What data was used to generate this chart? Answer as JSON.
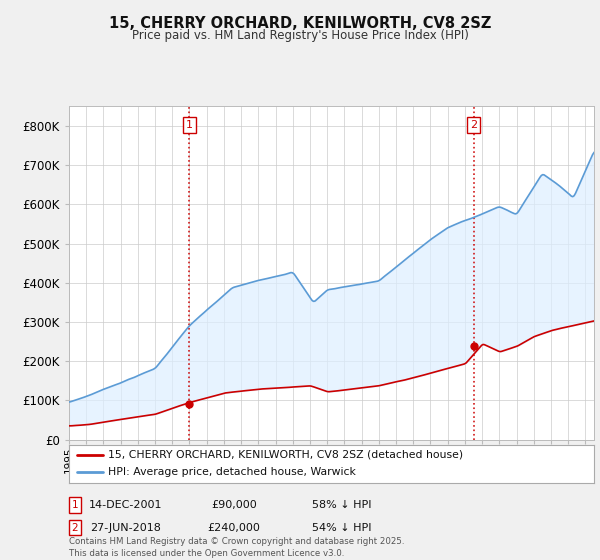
{
  "title": "15, CHERRY ORCHARD, KENILWORTH, CV8 2SZ",
  "subtitle": "Price paid vs. HM Land Registry's House Price Index (HPI)",
  "ylim": [
    0,
    850000
  ],
  "yticks": [
    0,
    100000,
    200000,
    300000,
    400000,
    500000,
    600000,
    700000,
    800000
  ],
  "ytick_labels": [
    "£0",
    "£100K",
    "£200K",
    "£300K",
    "£400K",
    "£500K",
    "£600K",
    "£700K",
    "£800K"
  ],
  "hpi_color": "#5b9bd5",
  "hpi_fill_color": "#ddeeff",
  "price_color": "#cc0000",
  "marker1_x": 2002.0,
  "marker1_y": 90000,
  "marker2_x": 2018.5,
  "marker2_y": 240000,
  "legend_line1": "15, CHERRY ORCHARD, KENILWORTH, CV8 2SZ (detached house)",
  "legend_line2": "HPI: Average price, detached house, Warwick",
  "annotation1_date": "14-DEC-2001",
  "annotation1_price": "£90,000",
  "annotation1_hpi": "58% ↓ HPI",
  "annotation2_date": "27-JUN-2018",
  "annotation2_price": "£240,000",
  "annotation2_hpi": "54% ↓ HPI",
  "footnote": "Contains HM Land Registry data © Crown copyright and database right 2025.\nThis data is licensed under the Open Government Licence v3.0.",
  "background_color": "#f0f0f0",
  "plot_bg_color": "#ffffff",
  "xlim_left": 1995.3,
  "xlim_right": 2025.5
}
